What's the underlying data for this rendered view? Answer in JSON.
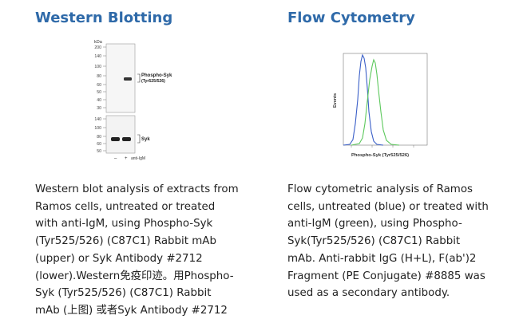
{
  "western": {
    "title": "Western Blotting",
    "kda_label": "kDa",
    "upper_ladder": [
      "200",
      "140",
      "100",
      "80",
      "60",
      "50",
      "40",
      "30"
    ],
    "lower_ladder": [
      "140",
      "100",
      "80",
      "60",
      "50"
    ],
    "band_label_line1": "Phospho-Syk",
    "band_label_line2": "(Tyr525/526)",
    "lower_band_label": "Syk",
    "lane_minus": "–",
    "lane_plus": "+",
    "treatment": "anti-IgM",
    "description": [
      "Western blot analysis of extracts from",
      "Ramos cells, untreated or treated",
      "with anti-IgM, using Phospho-Syk",
      "(Tyr525/526) (C87C1) Rabbit mAb",
      "(upper) or Syk Antibody #2712",
      "(lower).Western免疫印迹。用Phospho-",
      "Syk (Tyr525/526) (C87C1) Rabbit",
      "mAb (上图) 或者Syk Antibody #2712"
    ]
  },
  "flow": {
    "title": "Flow Cytometry",
    "y_label": "Events",
    "x_label": "Phospho-Syk (Tyr525/526)",
    "series_colors": {
      "untreated": "#3a5fc8",
      "anti_igm": "#5cc85c"
    },
    "description": [
      "Flow cytometric analysis of Ramos",
      "cells, untreated (blue) or treated with",
      "anti-IgM (green), using Phospho-",
      "Syk(Tyr525/526) (C87C1) Rabbit",
      "mAb. Anti-rabbit IgG (H+L), F(ab')2",
      "Fragment (PE Conjugate) #8885 was",
      "used as a secondary antibody."
    ]
  }
}
